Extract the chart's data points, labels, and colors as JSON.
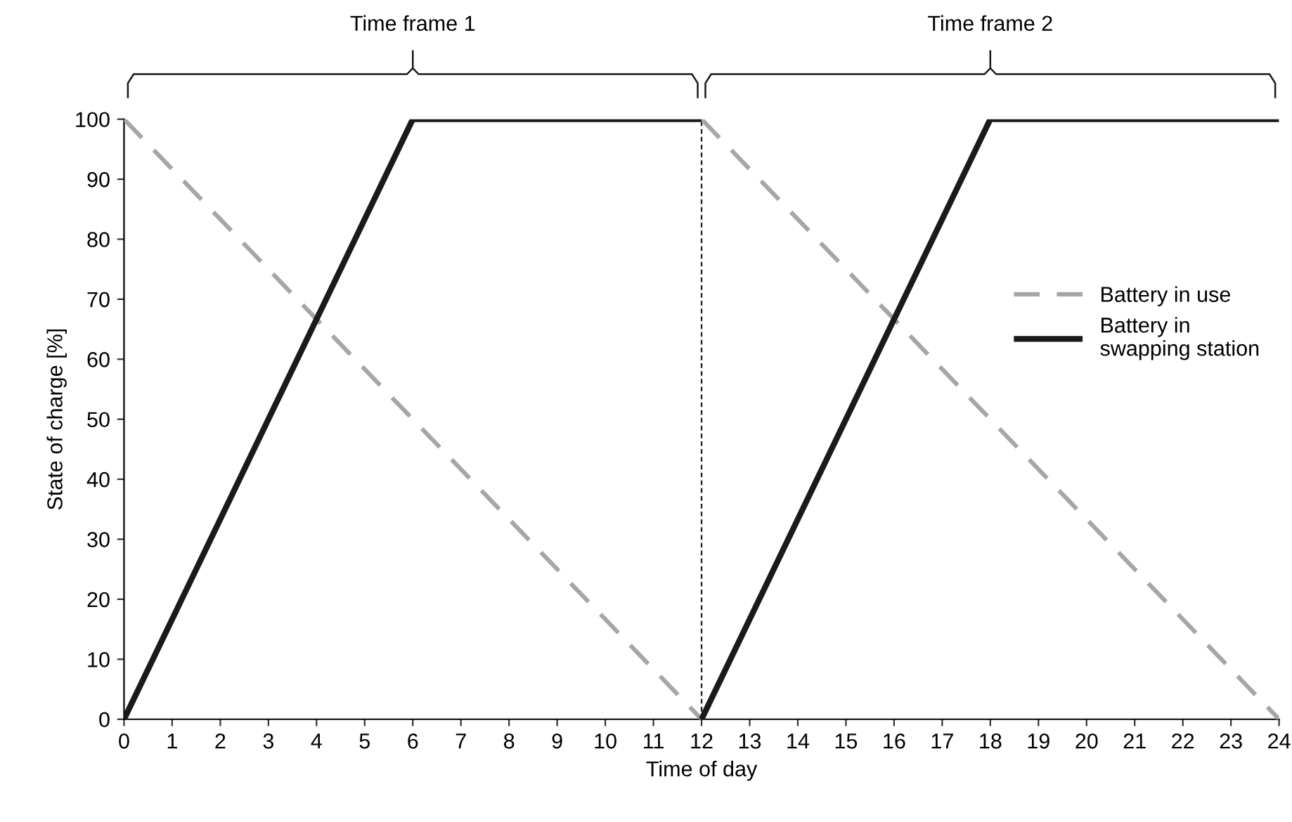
{
  "chart_data": {
    "type": "line",
    "xlabel": "Time of day",
    "ylabel": "State of charge [%]",
    "xlim": [
      0,
      24
    ],
    "xticks": [
      0,
      1,
      2,
      3,
      4,
      5,
      6,
      7,
      8,
      9,
      10,
      11,
      12,
      13,
      14,
      15,
      16,
      17,
      18,
      19,
      20,
      21,
      22,
      23,
      24
    ],
    "ylim": [
      0,
      100
    ],
    "yticks": [
      0,
      10,
      20,
      30,
      40,
      50,
      60,
      70,
      80,
      90,
      100
    ],
    "grid": false,
    "legend": "right",
    "series": [
      {
        "name": "Battery in use",
        "color": "#a6a6a6",
        "line_style": "dashed",
        "x": [
          0,
          12,
          null,
          12,
          24
        ],
        "values": [
          100,
          0,
          null,
          100,
          0
        ]
      },
      {
        "name": "Battery in\nswapping station",
        "color": "#1a1a1a",
        "line_style": "solid",
        "x": [
          0,
          6,
          12,
          null,
          12,
          18,
          24
        ],
        "values": [
          0,
          100,
          100,
          null,
          0,
          100,
          100
        ]
      }
    ],
    "ref_lines": [
      {
        "axis": "x",
        "value": 12,
        "label": null,
        "color": "#1a1a1a",
        "line_style": "dashed"
      }
    ],
    "annotations": [
      "Time frame 1",
      "Time frame 2"
    ]
  }
}
